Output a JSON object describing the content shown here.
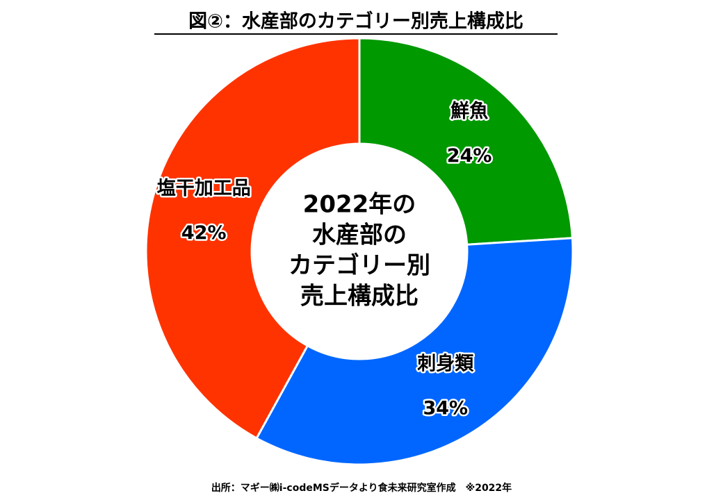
{
  "chart_data": {
    "type": "donut",
    "title": "図②：水産部のカテゴリー別売上構成比",
    "center_text": [
      "2022年の",
      "水産部の",
      "カテゴリー別",
      "売上構成比"
    ],
    "categories": [
      "鮮魚",
      "刺身類",
      "塩干加工品"
    ],
    "values": [
      24,
      34,
      42
    ],
    "value_labels": [
      "24%",
      "34%",
      "42%"
    ],
    "colors": [
      "#009900",
      "#0066ff",
      "#ff3300"
    ],
    "source": "出所：マギー㈱i-codeMSデータより食未来研究室作成　※2022年"
  }
}
